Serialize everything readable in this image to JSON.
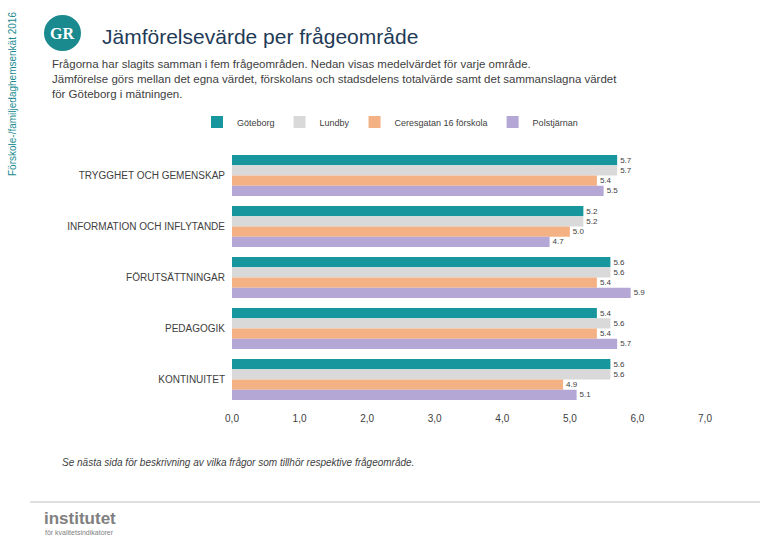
{
  "chart_data": {
    "type": "bar",
    "orientation": "horizontal",
    "title": "Jämförelsevärde per frågeområde",
    "subtitle": [
      "Frågorna har slagits samman i fem frågeområden. Nedan visas medelvärdet för varje område.",
      "Jämförelse görs mellan det egna värdet, förskolans och stadsdelens totalvärde samt det sammanslagna värdet",
      "för Göteborg i mätningen."
    ],
    "side_text": "Förskole-/familjedaghemsenkät 2016",
    "logo": "GR",
    "footnote": "Se nästa sida för beskrivning av vilka frågor som tillhör respektive frågeområde.",
    "brand": [
      "institutet",
      "för kvalitetsindikatorer"
    ],
    "categories": [
      "TRYGGHET OCH GEMENSKAP",
      "INFORMATION OCH INFLYTANDE",
      "FÖRUTSÄTTNINGAR",
      "PEDAGOGIK",
      "KONTINUITET"
    ],
    "series": [
      {
        "name": "Göteborg",
        "color": "#17979d",
        "values": [
          5.7,
          5.2,
          5.6,
          5.4,
          5.6
        ],
        "value_labels": [
          "5.7",
          "5.2",
          "5.6",
          "5.4",
          "5.6"
        ]
      },
      {
        "name": "Lundby",
        "color": "#d9d9d9",
        "values": [
          5.7,
          5.2,
          5.6,
          5.6,
          5.6
        ],
        "value_labels": [
          "5.7",
          "5.2",
          "5.6",
          "5.6",
          "5.6"
        ]
      },
      {
        "name": "Ceresgatan 16 förskola",
        "color": "#f4b183",
        "values": [
          5.4,
          5.0,
          5.4,
          5.4,
          4.9
        ],
        "value_labels": [
          "5.4",
          "5.0",
          "5.4",
          "5.4",
          "4.9"
        ]
      },
      {
        "name": "Polstjärnan",
        "color": "#b4a7d6",
        "values": [
          5.5,
          4.7,
          5.9,
          5.7,
          5.1
        ],
        "value_labels": [
          "5.5",
          "4.7",
          "5.9",
          "5.7",
          "5.1"
        ]
      }
    ],
    "xlim": [
      0,
      7
    ],
    "xticks": [
      {
        "value": 0,
        "label": "0,0"
      },
      {
        "value": 1,
        "label": "1,0"
      },
      {
        "value": 2,
        "label": "2,0"
      },
      {
        "value": 3,
        "label": "3,0"
      },
      {
        "value": 4,
        "label": "4,0"
      },
      {
        "value": 5,
        "label": "5,0"
      },
      {
        "value": 6,
        "label": "6,0"
      },
      {
        "value": 7,
        "label": "7,0"
      }
    ],
    "data_labels": true,
    "legend": "top",
    "grid": false
  }
}
